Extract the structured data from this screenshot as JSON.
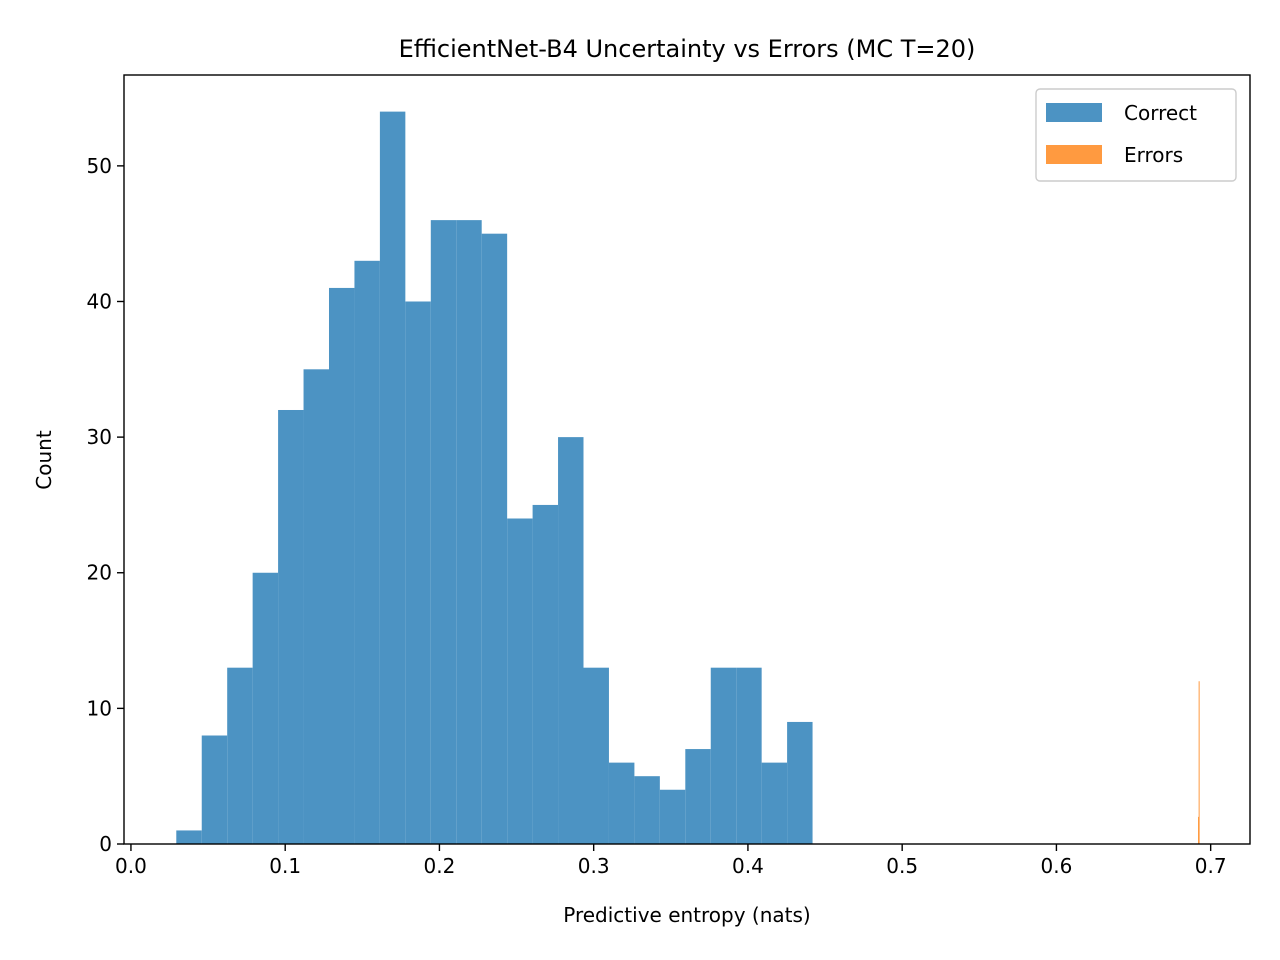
{
  "chart_data": {
    "type": "bar",
    "title": "EfficientNet-B4 Uncertainty vs Errors (MC T=20)",
    "xlabel": "Predictive entropy (nats)",
    "ylabel": "Count",
    "xlim": [
      -0.0045,
      0.7255
    ],
    "ylim": [
      0,
      56.7
    ],
    "xticks": [
      0.0,
      0.1,
      0.2,
      0.3,
      0.4,
      0.5,
      0.6,
      0.7
    ],
    "xtick_labels": [
      "0.0",
      "0.1",
      "0.2",
      "0.3",
      "0.4",
      "0.5",
      "0.6",
      "0.7"
    ],
    "yticks": [
      0,
      10,
      20,
      30,
      40,
      50
    ],
    "ytick_labels": [
      "0",
      "10",
      "20",
      "30",
      "40",
      "50"
    ],
    "grid": false,
    "legend_position": "top-right",
    "series": [
      {
        "name": "Correct",
        "color": "#4C93C3",
        "bin_edges": [
          0.0294,
          0.0459,
          0.0624,
          0.0789,
          0.0954,
          0.1119,
          0.1284,
          0.1449,
          0.1614,
          0.1779,
          0.1944,
          0.2109,
          0.2274,
          0.2439,
          0.2604,
          0.2769,
          0.2934,
          0.3099,
          0.3264,
          0.3429,
          0.3594,
          0.3759,
          0.3924,
          0.4089,
          0.4254,
          0.4419
        ],
        "counts": [
          1,
          8,
          13,
          20,
          32,
          35,
          41,
          43,
          54,
          40,
          46,
          46,
          45,
          24,
          25,
          30,
          13,
          6,
          5,
          4,
          7,
          13,
          13,
          6,
          9
        ]
      },
      {
        "name": "Errors",
        "color": "#FF9A40",
        "bin_edges": [
          0.6918,
          0.692,
          0.6922,
          0.6924
        ],
        "counts": [
          2,
          1,
          12
        ]
      }
    ]
  }
}
